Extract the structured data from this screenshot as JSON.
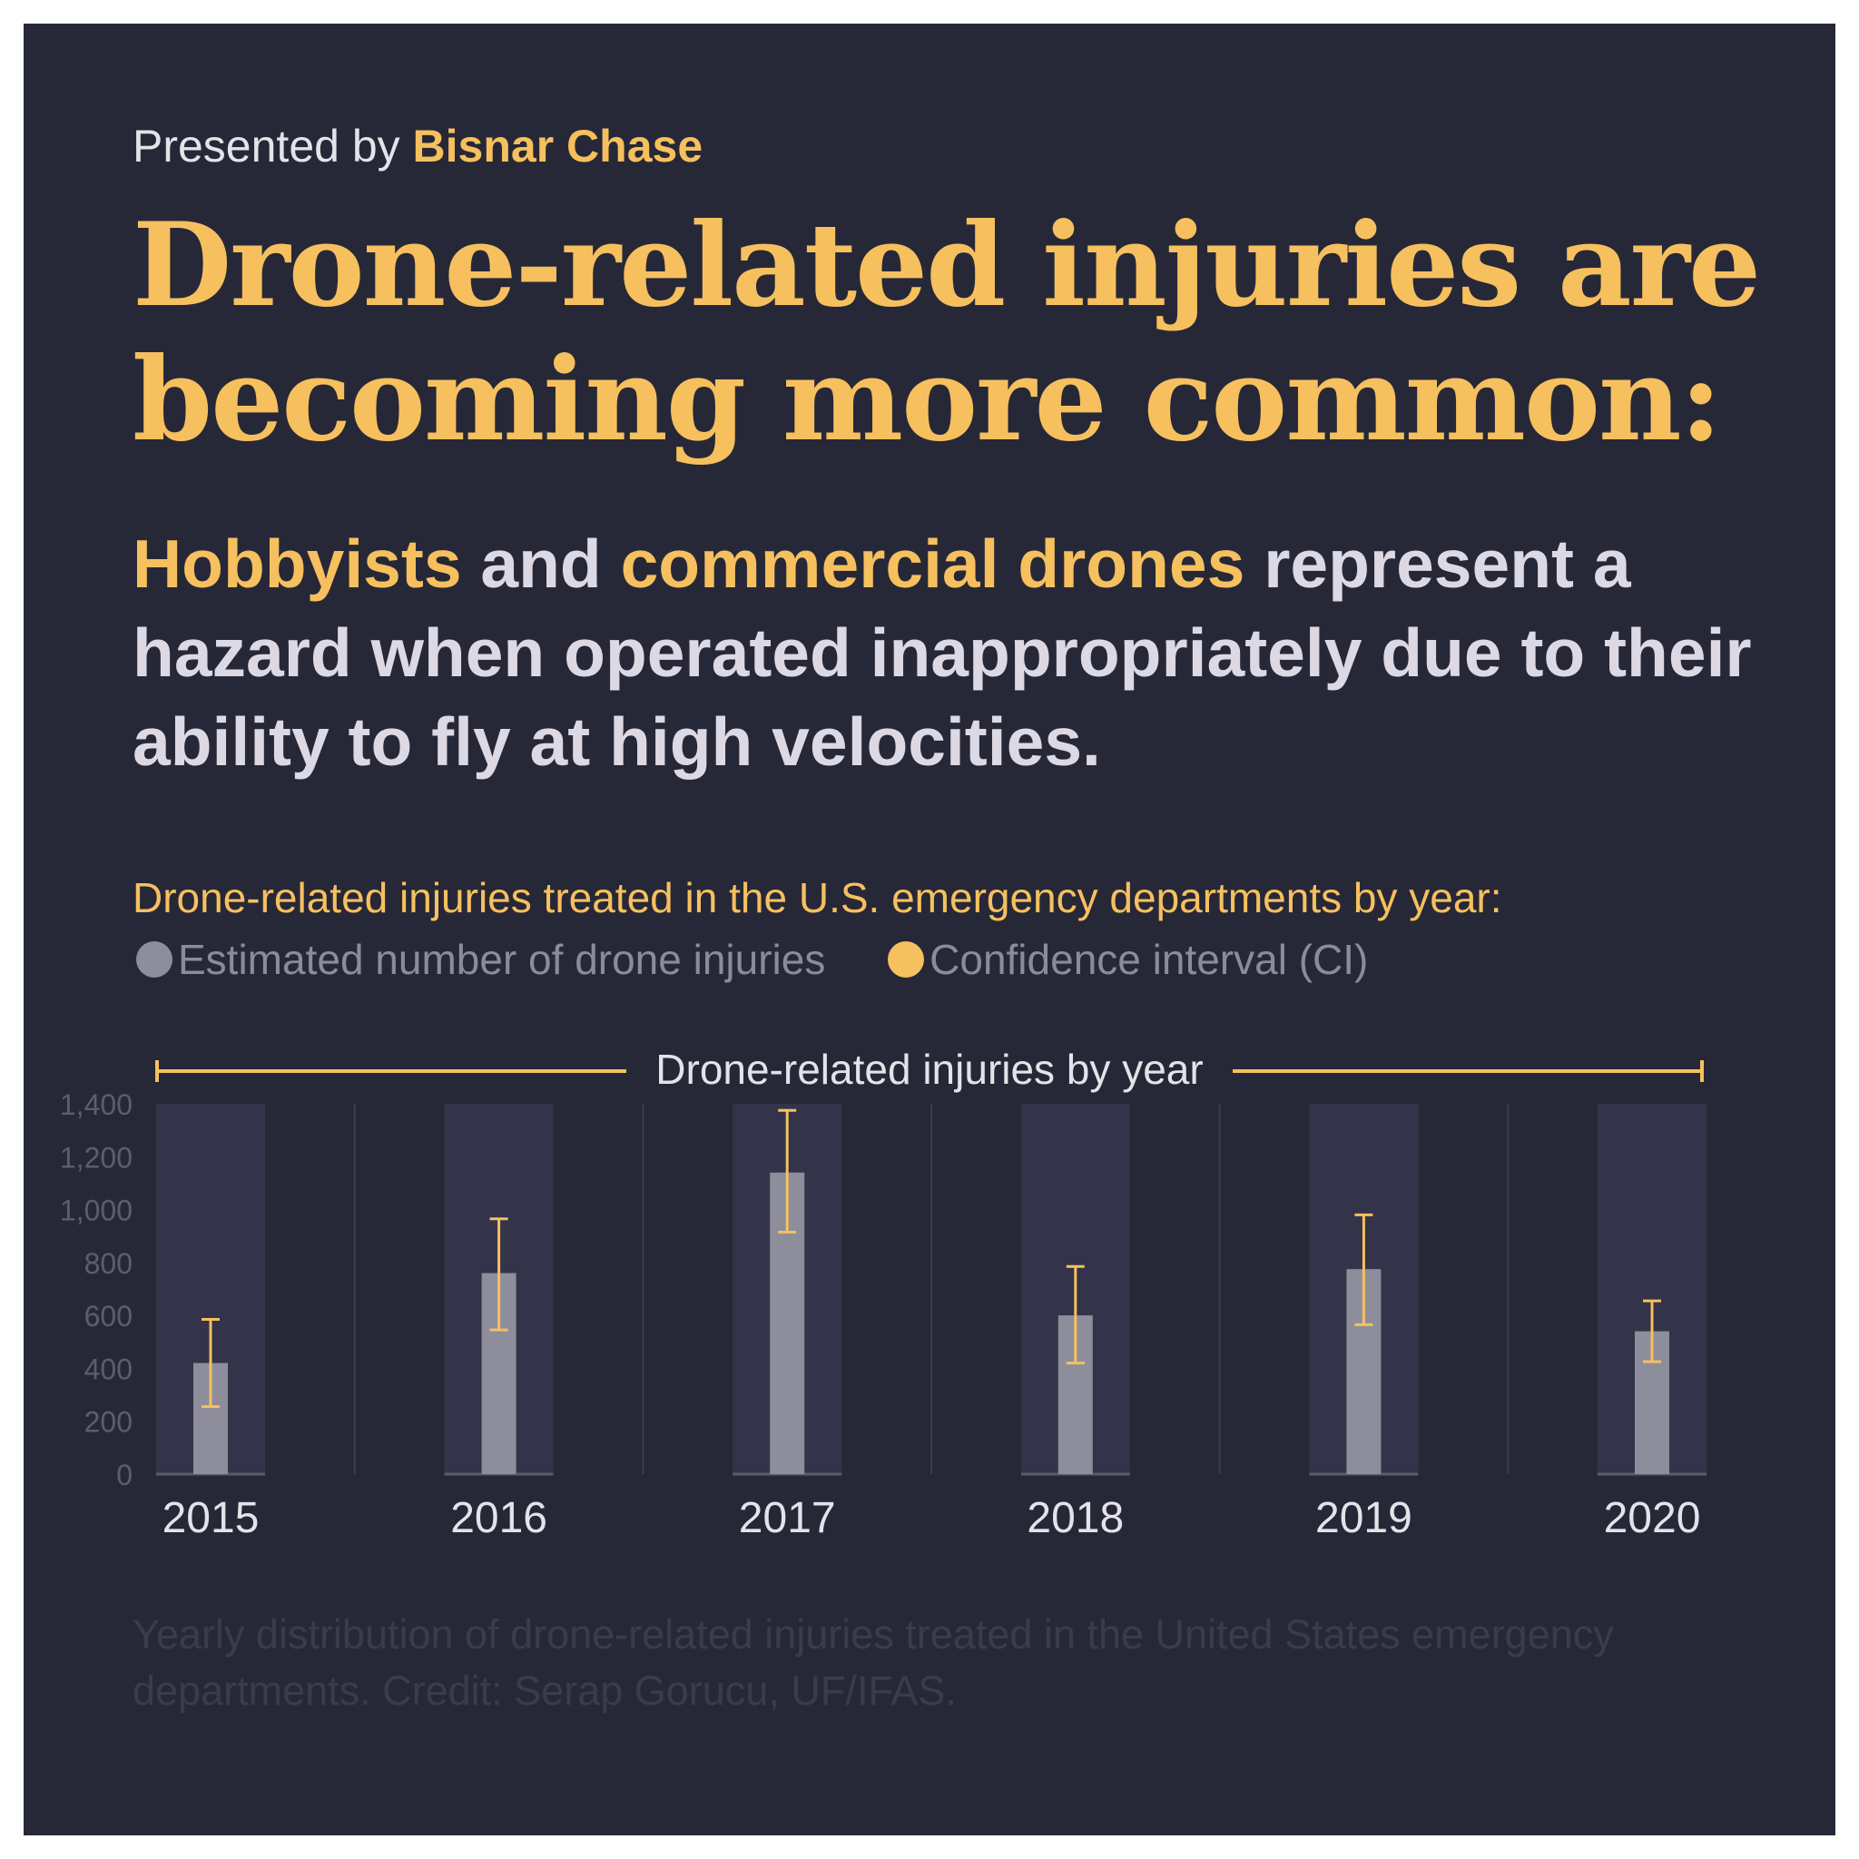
{
  "header": {
    "presented_prefix": "Presented by",
    "brand": "Bisnar Chase",
    "title": "Drone-related injuries are becoming more common:"
  },
  "subtitle": {
    "part1": "Hobbyists",
    "part2": " and ",
    "part3": "commercial drones",
    "part4": " represent a hazard when operated inappropriately due to their ability to fly at high velocities."
  },
  "chart_heading": "Drone-related injuries treated in the U.S. emergency departments by year:",
  "legend": {
    "items": [
      {
        "label": "Estimated number of drone injuries",
        "color": "#8e8d9b"
      },
      {
        "label": "Confidence interval (CI)",
        "color": "#f6c05f"
      }
    ]
  },
  "chart_data": {
    "type": "bar",
    "title": "Drone-related injuries by year",
    "categories": [
      "2015",
      "2016",
      "2017",
      "2018",
      "2019",
      "2020"
    ],
    "series": [
      {
        "name": "Estimated number of drone injuries",
        "values": [
          420,
          760,
          1140,
          600,
          775,
          540
        ],
        "ci_low": [
          255,
          545,
          915,
          420,
          565,
          425
        ],
        "ci_high": [
          585,
          965,
          1375,
          785,
          980,
          655
        ]
      }
    ],
    "yticks": [
      "0",
      "200",
      "400",
      "600",
      "800",
      "1,000",
      "1,200",
      "1,400"
    ],
    "ylim": [
      0,
      1400
    ],
    "colors": {
      "bar": "#8e8d9b",
      "ci": "#f6c05f",
      "panel": "#33344a",
      "tick": "#5c5d6e"
    }
  },
  "caption": "Yearly distribution of drone-related injuries treated in the United States emergency departments. Credit: Serap Gorucu, UF/IFAS."
}
